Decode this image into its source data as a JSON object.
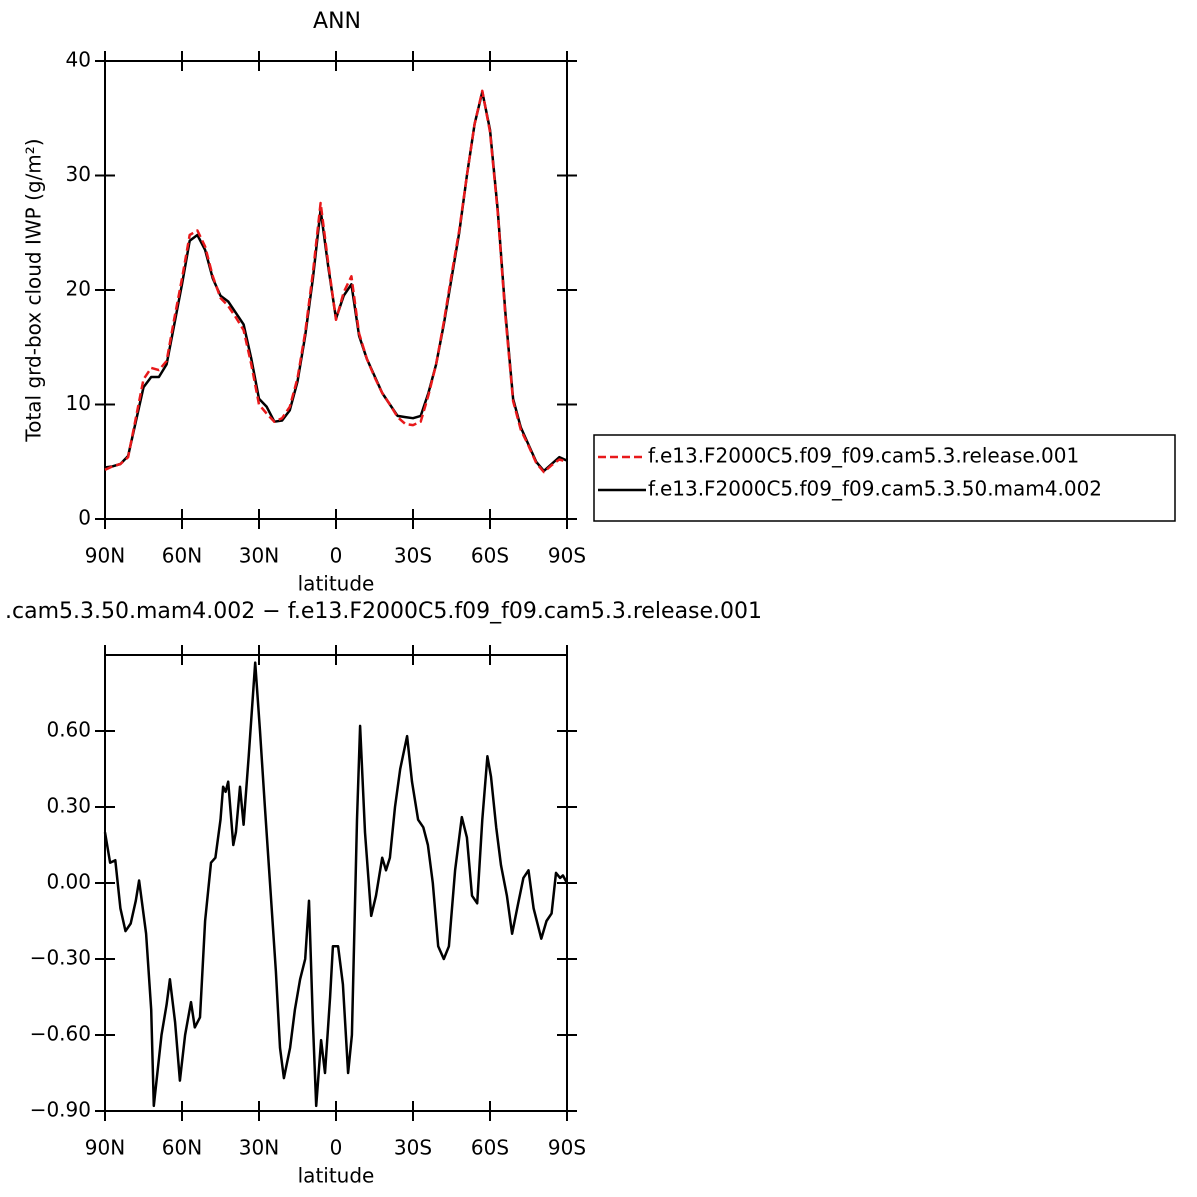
{
  "chart_data": [
    {
      "type": "line",
      "title": "ANN",
      "x_label": "latitude",
      "y_label": "Total grd-box cloud IWP (g/m²)",
      "x": [
        90,
        87,
        84,
        81,
        78,
        75,
        72,
        69,
        66,
        63,
        60,
        57,
        54,
        51,
        48,
        45,
        42,
        39,
        36,
        33,
        30,
        27,
        24,
        21,
        18,
        15,
        12,
        9,
        6,
        3,
        0,
        -3,
        -6,
        -9,
        -12,
        -15,
        -18,
        -21,
        -24,
        -27,
        -30,
        -33,
        -36,
        -39,
        -42,
        -45,
        -48,
        -51,
        -54,
        -57,
        -60,
        -63,
        -66,
        -69,
        -72,
        -75,
        -78,
        -81,
        -84,
        -87,
        -90
      ],
      "series": [
        {
          "name": "f.e13.F2000C5.f09_f09.cam5.3.release.001",
          "color": "#e8191b",
          "dash": true,
          "values": [
            4.3,
            4.6,
            4.8,
            5.4,
            8.8,
            12.2,
            13.2,
            13,
            13.8,
            17.5,
            21,
            24.8,
            25.2,
            23.8,
            21.2,
            19.3,
            18.6,
            17.6,
            16.5,
            13.5,
            10,
            9.2,
            8.5,
            8.8,
            9.8,
            12.3,
            16.3,
            21.5,
            27.6,
            22.3,
            17.4,
            19.8,
            21.2,
            16.2,
            14,
            12.4,
            11,
            10,
            8.9,
            8.3,
            8.2,
            8.5,
            10.8,
            13.5,
            17.2,
            21.3,
            25.2,
            30,
            34.5,
            37.4,
            33.8,
            26.8,
            17.7,
            10.3,
            7.8,
            6.4,
            4.9,
            4.1,
            4.7,
            5.2,
            5.0
          ]
        },
        {
          "name": "f.e13.F2000C5.f09_f09.cam5.3.50.mam4.002",
          "color": "#000000",
          "dash": false,
          "values": [
            4.5,
            4.6,
            4.8,
            5.5,
            8.5,
            11.5,
            12.4,
            12.4,
            13.5,
            17,
            20.5,
            24.3,
            24.8,
            23.5,
            21,
            19.5,
            19,
            18,
            17,
            14,
            10.5,
            9.8,
            8.5,
            8.6,
            9.5,
            12,
            16,
            21,
            27,
            22,
            17.5,
            19.5,
            20.5,
            16,
            14,
            12.5,
            11,
            10,
            9,
            8.9,
            8.8,
            9,
            11,
            13.5,
            17,
            21,
            25,
            30,
            34.5,
            37.3,
            34,
            27,
            18,
            10.5,
            8,
            6.5,
            5,
            4.2,
            4.8,
            5.4,
            5.1
          ]
        }
      ],
      "xlim": [
        90,
        -90
      ],
      "xticks": [
        {
          "value": 90,
          "label": "90N"
        },
        {
          "value": 60,
          "label": "60N"
        },
        {
          "value": 30,
          "label": "30N"
        },
        0,
        {
          "value": -30,
          "label": "30S"
        },
        {
          "value": -60,
          "label": "60S"
        },
        {
          "value": -90,
          "label": "90S"
        }
      ],
      "ylim": [
        0,
        40
      ],
      "yticks": [
        0,
        10,
        20,
        30,
        40
      ],
      "legend": "right"
    },
    {
      "type": "line",
      "title": ".cam5.3.50.mam4.002 − f.e13.F2000C5.f09_f09.cam5.3.release.001",
      "x_label": "latitude",
      "color": "#000000",
      "x": [
        90,
        88,
        86,
        84,
        82,
        80,
        78,
        76.7,
        74,
        72,
        71,
        68,
        66,
        64.7,
        62.7,
        60.8,
        58.8,
        56.5,
        55,
        53,
        51,
        48.7,
        47,
        45,
        44,
        43,
        42,
        40,
        39,
        37.4,
        36,
        34,
        31.5,
        29.6,
        27.7,
        25.7,
        23.4,
        21.8,
        20.3,
        17.9,
        16,
        14,
        12,
        10.5,
        9,
        7.7,
        5.8,
        4.3,
        2.3,
        1.2,
        -0.8,
        -2.7,
        -4.7,
        -6.2,
        -8.2,
        -9.4,
        -11.3,
        -13.7,
        -15.6,
        -18,
        -19.5,
        -21,
        -23,
        -25,
        -27.7,
        -29.6,
        -32,
        -34,
        -35.8,
        -37.7,
        -39.8,
        -42,
        -44,
        -46.4,
        -49,
        -51,
        -53,
        -55,
        -57,
        -59,
        -60.4,
        -62.4,
        -64.3,
        -66.6,
        -68.6,
        -71,
        -73,
        -75,
        -77,
        -80,
        -82,
        -84,
        -85.7,
        -87.3,
        -88.4,
        -90
      ],
      "values": [
        0.2,
        0.08,
        0.09,
        -0.1,
        -0.19,
        -0.16,
        -0.07,
        0.01,
        -0.2,
        -0.5,
        -0.88,
        -0.6,
        -0.48,
        -0.38,
        -0.55,
        -0.78,
        -0.6,
        -0.47,
        -0.57,
        -0.53,
        -0.15,
        0.08,
        0.1,
        0.25,
        0.38,
        0.36,
        0.4,
        0.15,
        0.2,
        0.38,
        0.23,
        0.5,
        0.87,
        0.6,
        0.3,
        0,
        -0.35,
        -0.65,
        -0.77,
        -0.65,
        -0.5,
        -0.38,
        -0.3,
        -0.07,
        -0.55,
        -0.88,
        -0.62,
        -0.75,
        -0.45,
        -0.25,
        -0.25,
        -0.4,
        -0.75,
        -0.6,
        0.25,
        0.62,
        0.2,
        -0.13,
        -0.05,
        0.1,
        0.05,
        0.1,
        0.3,
        0.45,
        0.58,
        0.4,
        0.25,
        0.22,
        0.15,
        0,
        -0.25,
        -0.3,
        -0.25,
        0.05,
        0.26,
        0.18,
        -0.05,
        -0.08,
        0.25,
        0.5,
        0.42,
        0.22,
        0.07,
        -0.05,
        -0.2,
        -0.08,
        0.02,
        0.05,
        -0.1,
        -0.22,
        -0.15,
        -0.12,
        0.04,
        0.02,
        0.03,
        0
      ],
      "xlim": [
        90,
        -90
      ],
      "xticks": [
        {
          "value": 90,
          "label": "90N"
        },
        {
          "value": 60,
          "label": "60N"
        },
        {
          "value": 30,
          "label": "30N"
        },
        0,
        {
          "value": -30,
          "label": "30S"
        },
        {
          "value": -60,
          "label": "60S"
        },
        {
          "value": -90,
          "label": "90S"
        }
      ],
      "ylim": [
        -0.9,
        0.9
      ],
      "yticks": [
        {
          "value": -0.9,
          "label": "−0.90"
        },
        {
          "value": -0.6,
          "label": "−0.60"
        },
        {
          "value": -0.3,
          "label": "−0.30"
        },
        {
          "value": 0,
          "label": "0.00"
        },
        {
          "value": 0.3,
          "label": "0.30"
        },
        {
          "value": 0.6,
          "label": "0.60"
        }
      ]
    }
  ]
}
